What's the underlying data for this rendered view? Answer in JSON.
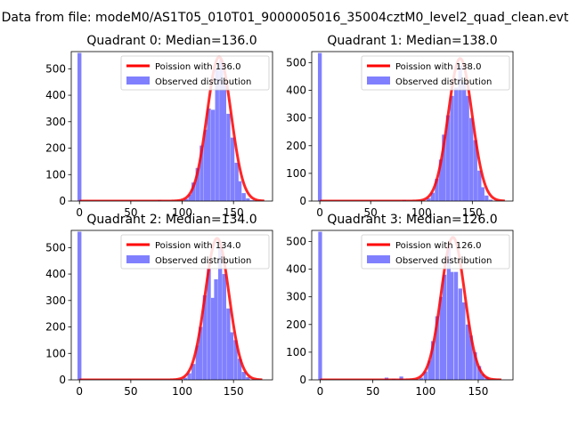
{
  "figure": {
    "suptitle": "Data from file: modeM0/AS1T05_010T01_9000005016_35004cztM0_level2_quad_clean.evt"
  },
  "chart_data": [
    {
      "type": "bar",
      "title": "Quadrant 0: Median=136.0",
      "xlim": [
        -8,
        188
      ],
      "ylim": [
        0,
        565
      ],
      "xticks": [
        0,
        50,
        100,
        150
      ],
      "yticks": [
        0,
        100,
        200,
        300,
        400,
        500
      ],
      "legend": {
        "position": "top-right",
        "line_label": "Poission with 136.0",
        "bar_label": "Observed distribution"
      },
      "line_color": "#ff0000",
      "bar_color": "#8080ff",
      "bin_width": 3.8,
      "observed": [
        [
          0,
          560
        ],
        [
          78,
          4
        ],
        [
          104,
          8
        ],
        [
          108,
          25
        ],
        [
          111,
          70
        ],
        [
          115,
          125
        ],
        [
          119,
          210
        ],
        [
          123,
          270
        ],
        [
          126,
          350
        ],
        [
          130,
          345
        ],
        [
          134,
          500
        ],
        [
          138,
          535
        ],
        [
          141,
          440
        ],
        [
          145,
          330
        ],
        [
          149,
          240
        ],
        [
          153,
          145
        ],
        [
          156,
          75
        ],
        [
          160,
          30
        ],
        [
          164,
          10
        ],
        [
          168,
          3
        ]
      ],
      "poisson_mean": 136.0,
      "poisson_peak": 545,
      "poisson_sigma": 11.7,
      "poisson_xrange": [
        0,
        180
      ]
    },
    {
      "type": "bar",
      "title": "Quadrant 1: Median=138.0",
      "xlim": [
        -8,
        190
      ],
      "ylim": [
        0,
        540
      ],
      "xticks": [
        0,
        50,
        100,
        150
      ],
      "yticks": [
        0,
        100,
        200,
        300,
        400,
        500
      ],
      "legend": {
        "position": "top-right",
        "line_label": "Poission with 138.0",
        "bar_label": "Observed distribution"
      },
      "line_color": "#ff0000",
      "bar_color": "#8080ff",
      "bin_width": 3.8,
      "observed": [
        [
          0,
          535
        ],
        [
          83,
          4
        ],
        [
          107,
          10
        ],
        [
          111,
          30
        ],
        [
          115,
          80
        ],
        [
          119,
          150
        ],
        [
          122,
          240
        ],
        [
          126,
          310
        ],
        [
          130,
          380
        ],
        [
          134,
          410
        ],
        [
          138,
          490
        ],
        [
          142,
          430
        ],
        [
          145,
          380
        ],
        [
          149,
          300
        ],
        [
          153,
          220
        ],
        [
          157,
          110
        ],
        [
          160,
          50
        ],
        [
          164,
          20
        ],
        [
          168,
          5
        ]
      ],
      "poisson_mean": 138.0,
      "poisson_peak": 515,
      "poisson_sigma": 11.8,
      "poisson_xrange": [
        0,
        182
      ]
    },
    {
      "type": "bar",
      "title": "Quadrant 2: Median=134.0",
      "xlim": [
        -8,
        188
      ],
      "ylim": [
        0,
        565
      ],
      "xticks": [
        0,
        50,
        100,
        150
      ],
      "yticks": [
        0,
        100,
        200,
        300,
        400,
        500
      ],
      "legend": {
        "position": "top-right",
        "line_label": "Poission with 134.0",
        "bar_label": "Observed distribution"
      },
      "line_color": "#ff0000",
      "bar_color": "#8080ff",
      "bin_width": 3.8,
      "observed": [
        [
          0,
          560
        ],
        [
          103,
          8
        ],
        [
          107,
          25
        ],
        [
          111,
          60
        ],
        [
          115,
          130
        ],
        [
          118,
          200
        ],
        [
          122,
          320
        ],
        [
          126,
          420
        ],
        [
          130,
          310
        ],
        [
          133,
          380
        ],
        [
          137,
          500
        ],
        [
          141,
          400
        ],
        [
          145,
          270
        ],
        [
          148,
          180
        ],
        [
          152,
          150
        ],
        [
          156,
          80
        ],
        [
          160,
          30
        ],
        [
          164,
          10
        ]
      ],
      "poisson_mean": 134.0,
      "poisson_peak": 535,
      "poisson_sigma": 11.6,
      "poisson_xrange": [
        0,
        178
      ]
    },
    {
      "type": "bar",
      "title": "Quadrant 3: Median=126.0",
      "xlim": [
        -8,
        183
      ],
      "ylim": [
        0,
        540
      ],
      "xticks": [
        0,
        50,
        100,
        150
      ],
      "yticks": [
        0,
        100,
        200,
        300,
        400,
        500
      ],
      "legend": {
        "position": "top-right",
        "line_label": "Poission with 126.0",
        "bar_label": "Observed distribution"
      },
      "line_color": "#ff0000",
      "bar_color": "#8080ff",
      "bin_width": 3.6,
      "observed": [
        [
          0,
          535
        ],
        [
          63,
          8
        ],
        [
          70,
          4
        ],
        [
          77,
          12
        ],
        [
          96,
          8
        ],
        [
          100,
          30
        ],
        [
          104,
          70
        ],
        [
          107,
          140
        ],
        [
          111,
          230
        ],
        [
          115,
          300
        ],
        [
          118,
          380
        ],
        [
          122,
          480
        ],
        [
          125,
          390
        ],
        [
          129,
          390
        ],
        [
          133,
          330
        ],
        [
          136,
          280
        ],
        [
          140,
          200
        ],
        [
          143,
          160
        ],
        [
          147,
          100
        ],
        [
          151,
          50
        ],
        [
          154,
          20
        ],
        [
          158,
          10
        ]
      ],
      "poisson_mean": 126.0,
      "poisson_peak": 515,
      "poisson_sigma": 11.2,
      "poisson_xrange": [
        0,
        172
      ]
    }
  ]
}
